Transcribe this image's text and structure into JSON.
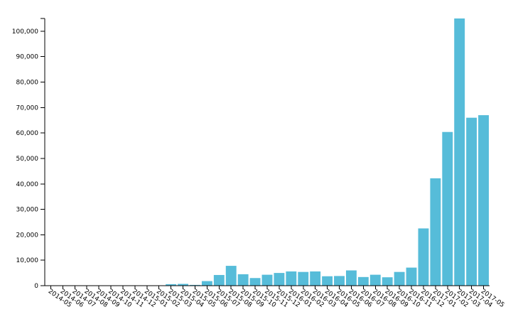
{
  "chart_data": {
    "type": "bar",
    "title": "",
    "xlabel": "",
    "ylabel": "",
    "ylim": [
      0,
      105000
    ],
    "y_ticks": [
      0,
      10000,
      20000,
      30000,
      40000,
      50000,
      60000,
      70000,
      80000,
      90000,
      100000
    ],
    "y_tick_labels": [
      "0",
      "10,000",
      "20,000",
      "30,000",
      "40,000",
      "50,000",
      "60,000",
      "70,000",
      "80,000",
      "90,000",
      "100,000"
    ],
    "grid": false,
    "legend": "none",
    "bar_color": "#56bcd9",
    "categories": [
      "2014-05",
      "2014-06",
      "2014-07",
      "2014-08",
      "2014-09",
      "2014-10",
      "2014-11",
      "2014-12",
      "2015-01",
      "2015-02",
      "2015-03",
      "2015-04",
      "2015-05",
      "2015-06",
      "2015-07",
      "2015-08",
      "2015-09",
      "2015-10",
      "2015-11",
      "2015-12",
      "2016-01",
      "2016-02",
      "2016-03",
      "2016-04",
      "2016-05",
      "2016-06",
      "2016-07",
      "2016-08",
      "2016-09",
      "2016-10",
      "2016-11",
      "2016-12",
      "2017-01",
      "2017-02",
      "2017-03",
      "2017-04",
      "2017-05"
    ],
    "values": [
      0,
      0,
      0,
      0,
      0,
      0,
      0,
      0,
      0,
      0,
      600,
      700,
      300,
      1800,
      4200,
      7800,
      4500,
      3000,
      4300,
      5000,
      5600,
      5400,
      5600,
      3700,
      3800,
      6000,
      3400,
      4300,
      3300,
      5400,
      7100,
      22500,
      42200,
      60400,
      105000,
      66000,
      67000
    ]
  }
}
